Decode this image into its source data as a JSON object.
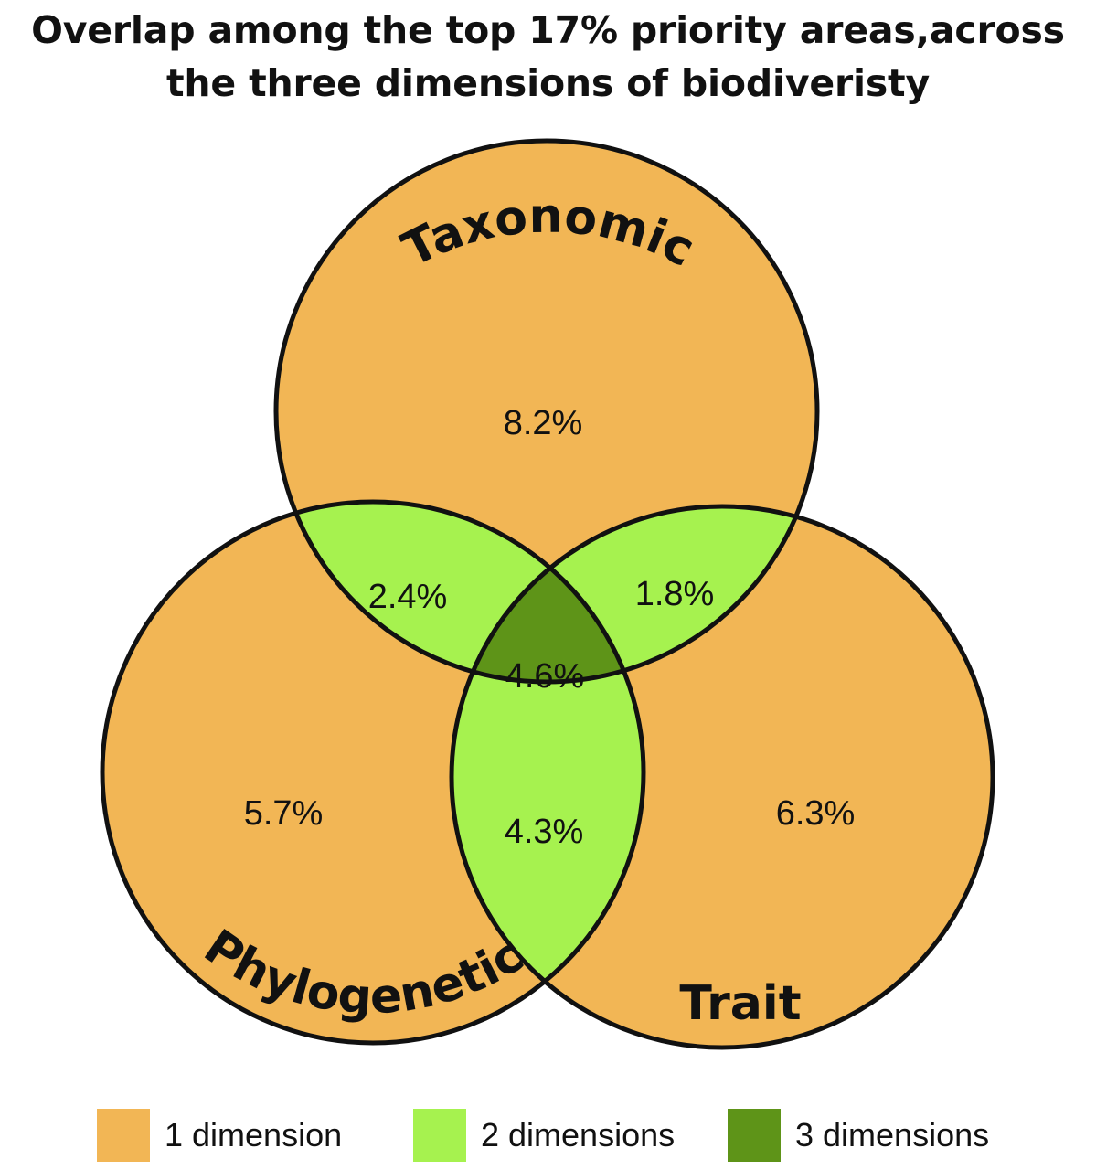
{
  "title": {
    "line1": "Overlap among the top 17% priority areas,across",
    "line2": "the three dimensions of biodiveristy"
  },
  "sets": {
    "taxonomic": "Taxonomic",
    "phylogenetic": "Phylogenetic",
    "trait": "Trait"
  },
  "regions": {
    "taxonomic_only": "8.2%",
    "phylogenetic_only": "5.7%",
    "trait_only": "6.3%",
    "taxonomic_phylogenetic": "2.4%",
    "taxonomic_trait": "1.8%",
    "phylogenetic_trait": "4.3%",
    "all_three": "4.6%"
  },
  "legend": [
    {
      "label": "1 dimension",
      "color": "#f2b655"
    },
    {
      "label": "2 dimensions",
      "color": "#a6f24f"
    },
    {
      "label": "3 dimensions",
      "color": "#5e9418"
    }
  ],
  "colors": {
    "one_dimension": "#f2b655",
    "two_dimensions": "#a6f24f",
    "three_dimensions": "#5e9418",
    "outline": "#111111"
  }
}
